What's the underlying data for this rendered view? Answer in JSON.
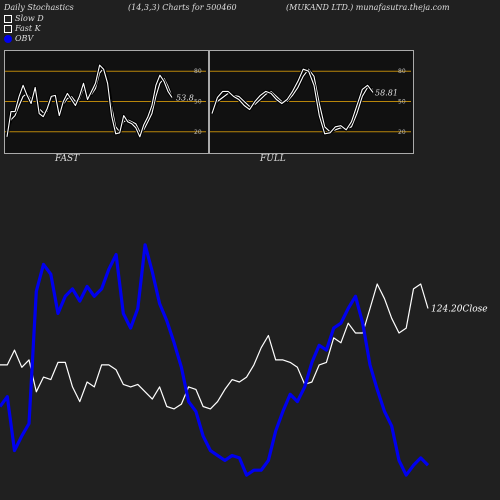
{
  "header": {
    "left": "Daily Stochastics",
    "center": "(14,3,3) Charts for 500460",
    "right": "(MUKAND LTD.) munafasutra.theja.com"
  },
  "legend": {
    "slow_d": "Slow  D",
    "fast_k": "Fast K",
    "obv": "OBV"
  },
  "colors": {
    "background": "#202020",
    "panel": "#111111",
    "band_line": "#b8860b",
    "obv": "#0000ee",
    "close": "#ffffff"
  },
  "chart_data": [
    {
      "type": "line",
      "panel_label": "FAST",
      "ylim": [
        0,
        100
      ],
      "yticks": [
        "80",
        "50",
        "20"
      ],
      "band_levels": [
        80,
        50,
        20
      ],
      "end_label": "53.8",
      "series": [
        {
          "name": "Slow  D",
          "values": [
            22,
            32,
            36,
            46,
            55,
            58,
            52,
            60,
            43,
            39,
            40,
            54,
            55,
            40,
            47,
            53,
            55,
            50,
            52,
            63,
            56,
            57,
            63,
            78,
            83,
            70,
            45,
            25,
            20,
            30,
            32,
            30,
            28,
            20,
            22,
            30,
            38,
            55,
            68,
            73,
            65,
            55
          ]
        },
        {
          "name": "Fast K",
          "values": [
            15,
            40,
            40,
            55,
            66,
            56,
            48,
            64,
            38,
            35,
            43,
            55,
            56,
            36,
            50,
            58,
            52,
            46,
            55,
            68,
            52,
            60,
            68,
            86,
            82,
            68,
            36,
            18,
            19,
            36,
            30,
            28,
            24,
            15,
            27,
            35,
            46,
            66,
            76,
            70,
            60,
            54
          ]
        }
      ]
    },
    {
      "type": "line",
      "panel_label": "FULL",
      "ylim": [
        0,
        100
      ],
      "yticks": [
        "80",
        "50",
        "20"
      ],
      "band_levels": [
        80,
        50,
        20
      ],
      "end_label": "58.81",
      "series": [
        {
          "name": "Slow  D",
          "values": [
            40,
            50,
            54,
            58,
            56,
            55,
            50,
            45,
            47,
            52,
            57,
            60,
            55,
            50,
            50,
            56,
            64,
            75,
            82,
            75,
            48,
            25,
            20,
            22,
            24,
            23,
            25,
            38,
            55,
            64,
            62
          ]
        },
        {
          "name": "Fast K",
          "values": [
            38,
            54,
            60,
            60,
            55,
            52,
            46,
            42,
            50,
            56,
            60,
            58,
            52,
            48,
            52,
            60,
            70,
            82,
            80,
            66,
            36,
            18,
            19,
            25,
            26,
            22,
            30,
            46,
            62,
            66,
            59
          ]
        }
      ]
    },
    {
      "type": "line",
      "end_label": "124.20Close",
      "series": [
        {
          "name": "Close",
          "values": [
            0.47,
            0.47,
            0.53,
            0.46,
            0.49,
            0.36,
            0.42,
            0.41,
            0.48,
            0.48,
            0.38,
            0.32,
            0.4,
            0.38,
            0.47,
            0.47,
            0.45,
            0.39,
            0.38,
            0.39,
            0.36,
            0.33,
            0.38,
            0.3,
            0.29,
            0.31,
            0.38,
            0.37,
            0.3,
            0.29,
            0.32,
            0.37,
            0.41,
            0.4,
            0.42,
            0.47,
            0.54,
            0.59,
            0.49,
            0.49,
            0.48,
            0.46,
            0.39,
            0.4,
            0.47,
            0.48,
            0.58,
            0.56,
            0.64,
            0.6,
            0.6,
            0.7,
            0.8,
            0.74,
            0.66,
            0.6,
            0.62,
            0.78,
            0.8,
            0.7
          ]
        },
        {
          "name": "OBV",
          "values": [
            0.3,
            0.34,
            0.12,
            0.18,
            0.23,
            0.77,
            0.88,
            0.84,
            0.68,
            0.75,
            0.78,
            0.73,
            0.79,
            0.75,
            0.78,
            0.86,
            0.92,
            0.68,
            0.62,
            0.7,
            0.96,
            0.85,
            0.72,
            0.65,
            0.56,
            0.46,
            0.32,
            0.28,
            0.18,
            0.12,
            0.1,
            0.08,
            0.1,
            0.09,
            0.02,
            0.04,
            0.04,
            0.08,
            0.2,
            0.28,
            0.35,
            0.32,
            0.38,
            0.48,
            0.55,
            0.53,
            0.62,
            0.64,
            0.7,
            0.75,
            0.64,
            0.47,
            0.37,
            0.28,
            0.22,
            0.08,
            0.02,
            0.06,
            0.09,
            0.06
          ]
        }
      ]
    }
  ]
}
